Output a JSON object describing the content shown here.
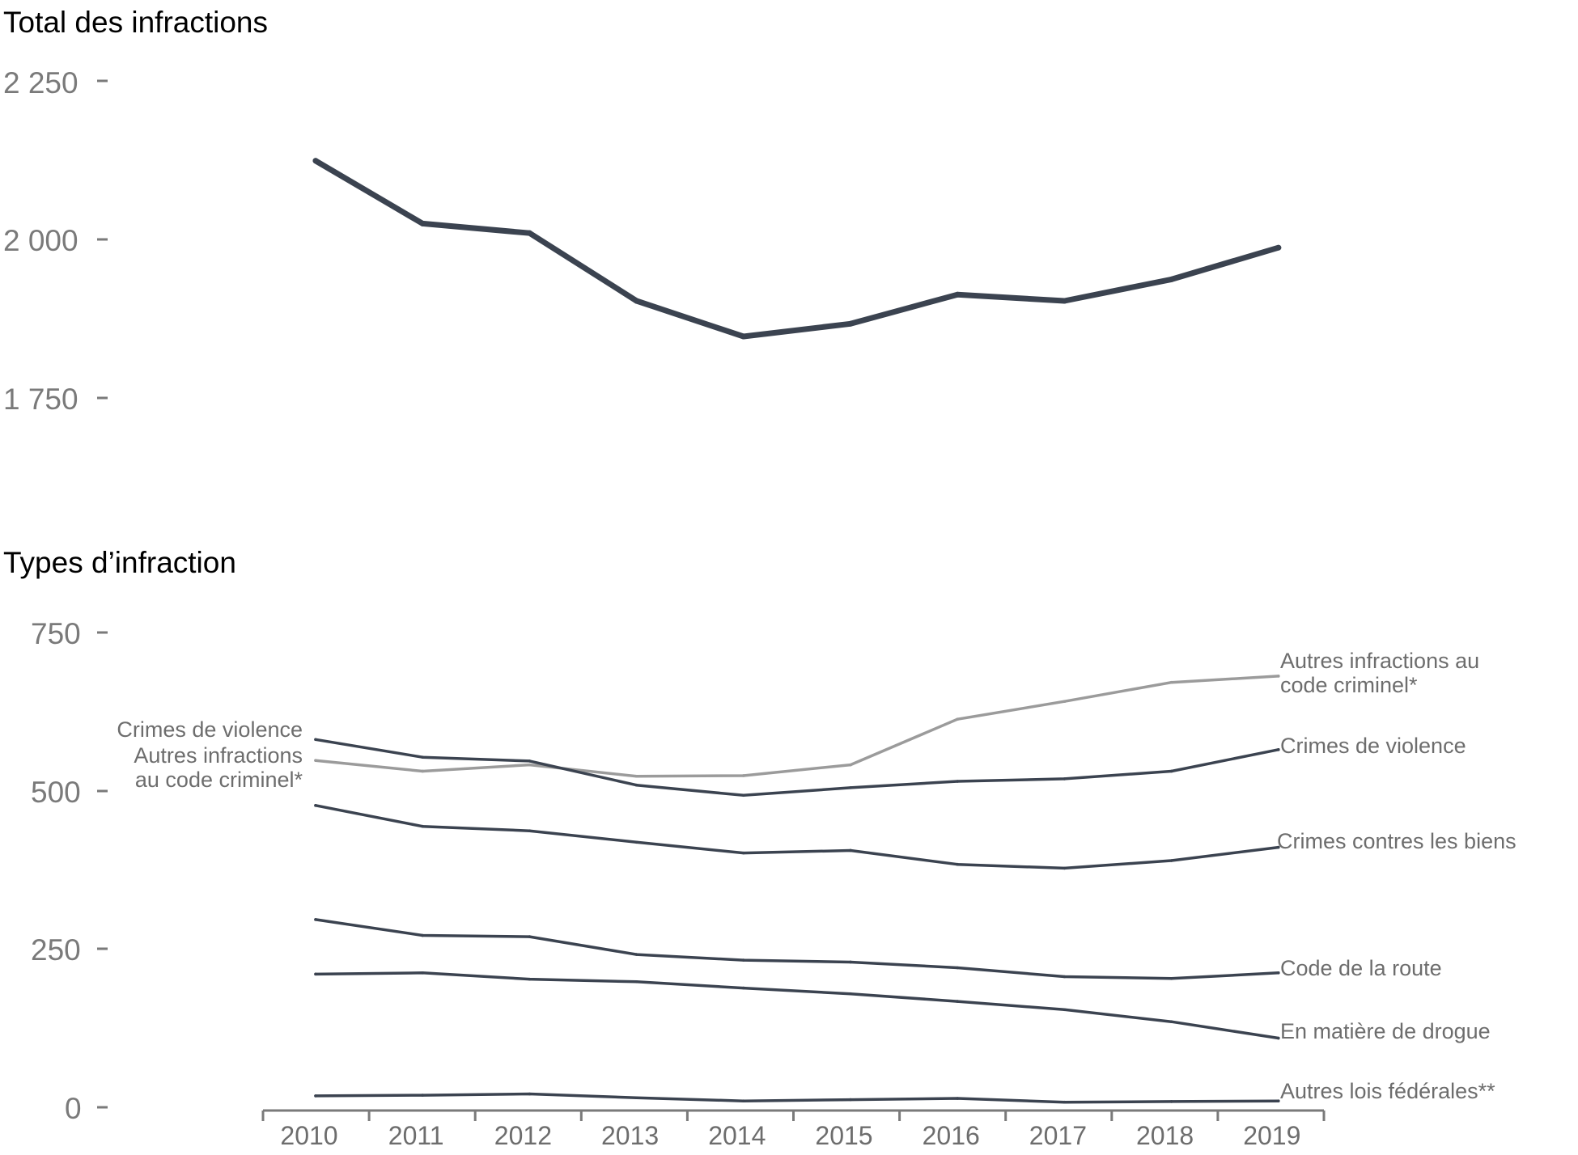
{
  "chart_data": [
    {
      "type": "line",
      "title": "Total des infractions",
      "x": [
        2010,
        2011,
        2012,
        2013,
        2014,
        2015,
        2016,
        2017,
        2018,
        2019
      ],
      "yticks": [
        "2 250",
        "2 000",
        "1 750"
      ],
      "ylim": [
        1600,
        2250
      ],
      "grid": false,
      "series": [
        {
          "values": [
            2124,
            2025,
            2010,
            1903,
            1847,
            1867,
            1913,
            1903,
            1937,
            1987
          ],
          "color": "#3b4350"
        }
      ]
    },
    {
      "type": "line",
      "title": "Types d’infraction",
      "x": [
        2010,
        2011,
        2012,
        2013,
        2014,
        2015,
        2016,
        2017,
        2018,
        2019
      ],
      "xticks": [
        "2010",
        "2011",
        "2012",
        "2013",
        "2014",
        "2015",
        "2016",
        "2017",
        "2018",
        "2019"
      ],
      "yticks": [
        "750",
        "500",
        "250",
        "0"
      ],
      "ylim": [
        0,
        750
      ],
      "grid": false,
      "series": [
        {
          "name": "Autres infractions au code criminel*",
          "start_label": [
            "Autres infractions",
            "au code criminel*"
          ],
          "end_label": [
            "Autres infractions au",
            "code criminel*"
          ],
          "color": "#9b9b9b",
          "values": [
            547,
            530,
            540,
            522,
            523,
            540,
            612,
            640,
            670,
            680
          ]
        },
        {
          "name": "Crimes de violence",
          "start_label": [
            "Crimes de violence"
          ],
          "end_label": [
            "Crimes de violence"
          ],
          "color": "#3b4350",
          "values": [
            580,
            552,
            546,
            508,
            492,
            504,
            514,
            518,
            530,
            564
          ]
        },
        {
          "name": "Crimes contres les biens",
          "end_label": [
            "Crimes contres les biens"
          ],
          "color": "#3b4350",
          "values": [
            476,
            443,
            436,
            418,
            401,
            405,
            383,
            377,
            389,
            410
          ]
        },
        {
          "name": "Code de la route",
          "end_label": [
            "Code de la route"
          ],
          "color": "#3b4350",
          "values": [
            296,
            271,
            269,
            241,
            232,
            229,
            220,
            206,
            203,
            212
          ]
        },
        {
          "name": "En matière de drogue",
          "end_label": [
            "En matière de drogue"
          ],
          "color": "#3b4350",
          "values": [
            210,
            212,
            202,
            198,
            188,
            179,
            167,
            154,
            135,
            109
          ]
        },
        {
          "name": "Autres lois fédérales**",
          "end_label": [
            "Autres lois fédérales**"
          ],
          "color": "#3b4350",
          "values": [
            18,
            19,
            21,
            15,
            10,
            12,
            14,
            8,
            9,
            10
          ]
        }
      ]
    }
  ]
}
